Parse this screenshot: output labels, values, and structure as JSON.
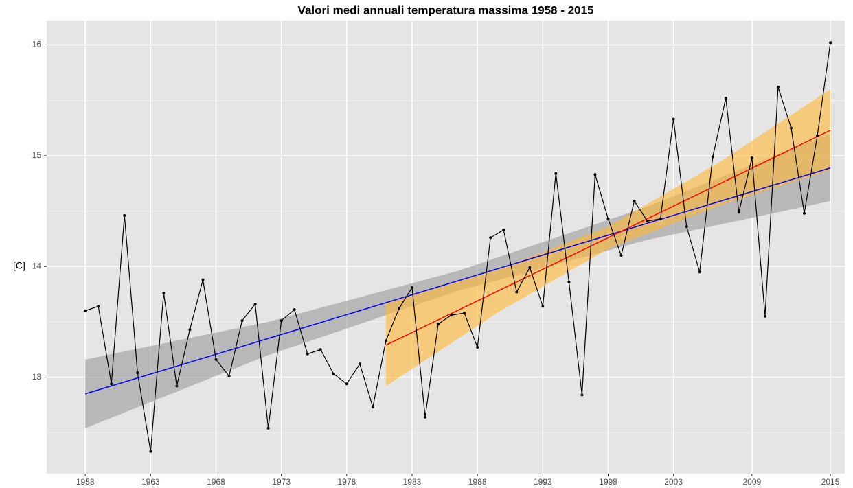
{
  "chart_data": {
    "type": "line",
    "title": "Valori medi annuali temperatura massima   1958 - 2015",
    "y_label": "[C]",
    "xlim": [
      1955.05,
      2016.1
    ],
    "ylim": [
      12.13,
      16.22
    ],
    "xticks": [
      1958,
      1963,
      1968,
      1973,
      1978,
      1983,
      1988,
      1993,
      1998,
      2003,
      2009,
      2015
    ],
    "yticks": [
      13,
      14,
      15,
      16
    ],
    "yminor": [
      12.5,
      13.5,
      14.5,
      15.5
    ],
    "grid": true,
    "x": [
      1958,
      1959,
      1960,
      1961,
      1962,
      1963,
      1964,
      1965,
      1966,
      1967,
      1968,
      1969,
      1970,
      1971,
      1972,
      1973,
      1974,
      1975,
      1976,
      1977,
      1978,
      1979,
      1980,
      1981,
      1982,
      1983,
      1984,
      1985,
      1986,
      1987,
      1988,
      1989,
      1990,
      1991,
      1992,
      1993,
      1994,
      1995,
      1996,
      1997,
      1998,
      1999,
      2000,
      2001,
      2002,
      2003,
      2004,
      2005,
      2006,
      2007,
      2008,
      2009,
      2010,
      2011,
      2012,
      2013,
      2014,
      2015
    ],
    "series": [
      {
        "color": "#000000",
        "values": [
          13.6,
          13.64,
          12.94,
          14.46,
          13.04,
          12.33,
          13.76,
          12.92,
          13.43,
          13.88,
          13.16,
          13.01,
          13.51,
          13.66,
          12.54,
          13.51,
          13.61,
          13.21,
          13.25,
          13.03,
          12.94,
          13.12,
          12.73,
          13.33,
          13.62,
          13.81,
          12.64,
          13.48,
          13.56,
          13.58,
          13.27,
          14.26,
          14.33,
          13.77,
          13.99,
          13.64,
          14.84,
          13.86,
          12.84,
          14.83,
          14.43,
          14.1,
          14.59,
          14.41,
          14.43,
          15.33,
          14.36,
          13.95,
          14.99,
          15.52,
          14.49,
          14.98,
          13.55,
          15.62,
          15.25,
          14.48,
          15.18,
          16.02
        ]
      }
    ],
    "trends": [
      {
        "color": "#0000ff",
        "band_color": "#999999",
        "x": [
          1958,
          1972,
          1986.5,
          2001,
          2015
        ],
        "values": [
          12.85,
          13.35,
          13.87,
          14.39,
          14.89
        ],
        "lower": [
          12.54,
          13.2,
          13.78,
          14.24,
          14.59
        ],
        "upper": [
          13.16,
          13.5,
          13.96,
          14.54,
          15.2
        ]
      },
      {
        "color": "#ff0000",
        "band_color": "#ffb732",
        "x": [
          1981,
          1989.5,
          1998,
          2006.5,
          2015
        ],
        "values": [
          13.29,
          13.775,
          14.26,
          14.745,
          15.23
        ],
        "lower": [
          12.92,
          13.58,
          14.16,
          14.55,
          14.87
        ],
        "upper": [
          13.67,
          13.97,
          14.36,
          14.94,
          15.6
        ]
      }
    ]
  }
}
